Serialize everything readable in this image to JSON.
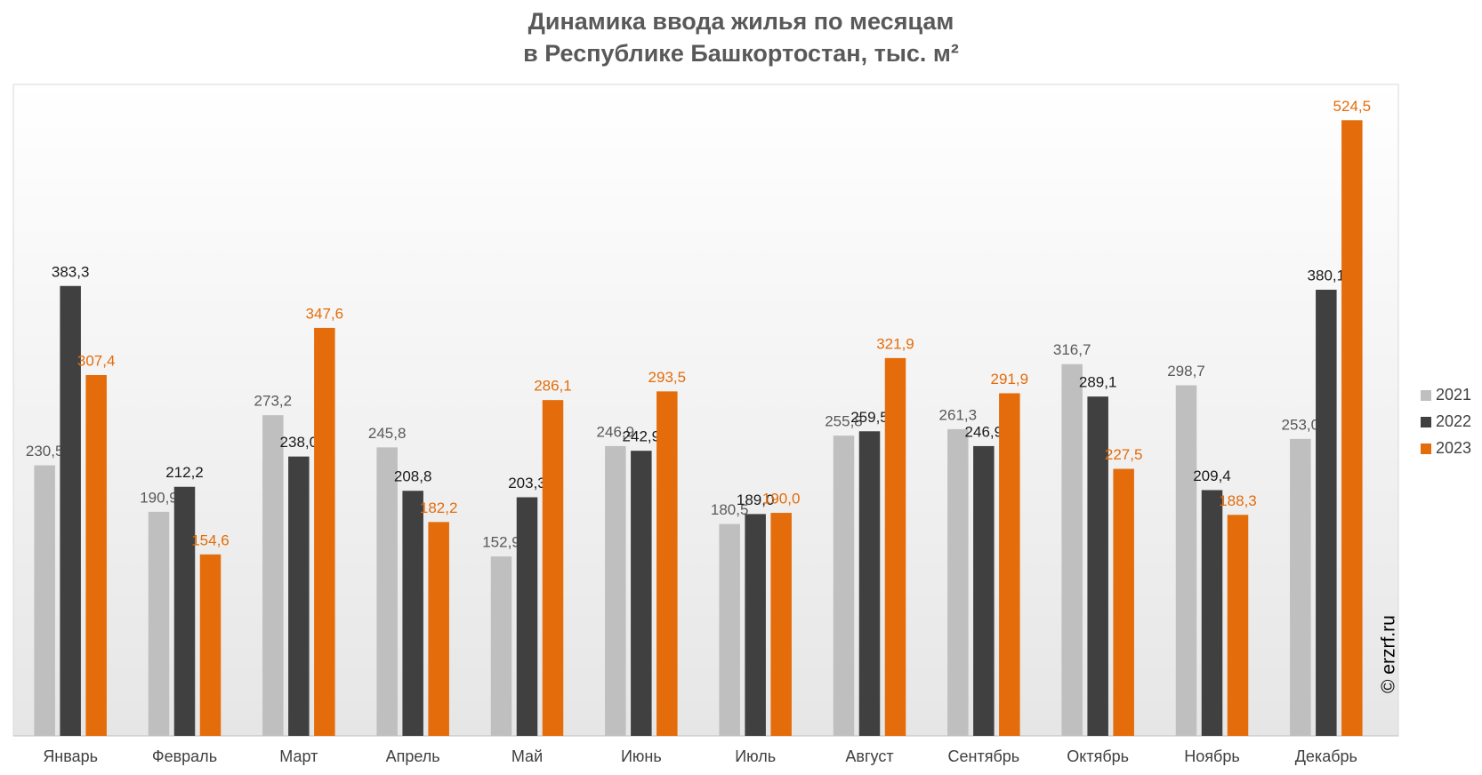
{
  "chart_data": {
    "type": "bar",
    "title": [
      "Динамика ввода жилья по месяцам",
      "в Республике Башкортостан, тыс. м²"
    ],
    "categories": [
      "Январь",
      "Февраль",
      "Март",
      "Апрель",
      "Май",
      "Июнь",
      "Июль",
      "Август",
      "Сентябрь",
      "Октябрь",
      "Ноябрь",
      "Декабрь"
    ],
    "series": [
      {
        "name": "2021",
        "color": "#bfbfbf",
        "label_color": "#595959",
        "values": [
          230.5,
          190.9,
          273.2,
          245.8,
          152.9,
          246.9,
          180.5,
          255.8,
          261.3,
          316.7,
          298.7,
          253.0
        ],
        "value_labels": [
          "230,5",
          "190,9",
          "273,2",
          "245,8",
          "152,9",
          "246,9",
          "180,5",
          "255,8",
          "261,3",
          "316,7",
          "298,7",
          "253,0"
        ]
      },
      {
        "name": "2022",
        "color": "#404040",
        "label_color": "#1a1a1a",
        "values": [
          383.3,
          212.2,
          238.0,
          208.8,
          203.3,
          242.9,
          189.0,
          259.5,
          246.9,
          289.1,
          209.4,
          380.1
        ],
        "value_labels": [
          "383,3",
          "212,2",
          "238,0",
          "208,8",
          "203,3",
          "242,9",
          "189,0",
          "259,5",
          "246,9",
          "289,1",
          "209,4",
          "380,1"
        ]
      },
      {
        "name": "2023",
        "color": "#e46c0a",
        "label_color": "#e46c0a",
        "values": [
          307.4,
          154.6,
          347.6,
          182.2,
          286.1,
          293.5,
          190.0,
          321.9,
          291.9,
          227.5,
          188.3,
          524.5
        ],
        "value_labels": [
          "307,4",
          "154,6",
          "347,6",
          "182,2",
          "286,1",
          "293,5",
          "190,0",
          "321,9",
          "291,9",
          "227,5",
          "188,3",
          "524,5"
        ]
      }
    ],
    "ylim": [
      0,
      555
    ],
    "legend": "right",
    "source": "© erzrf.ru"
  }
}
